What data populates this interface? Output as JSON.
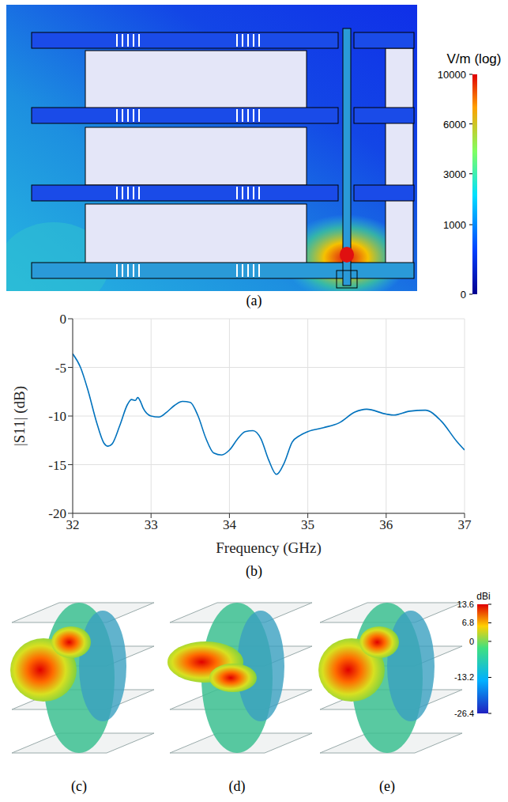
{
  "field_panel": {
    "label": "(a)",
    "colorbar": {
      "title": "V/m (log)",
      "range": [
        0,
        10000
      ],
      "ticks": [
        0,
        1000,
        3000,
        6000,
        10000
      ]
    }
  },
  "chart_data": {
    "label": "(b)",
    "type": "line",
    "x_label": "Frequency (GHz)",
    "y_label": "|S11| (dB)",
    "x": [
      32.0,
      32.1,
      32.2,
      32.3,
      32.4,
      32.45,
      32.5,
      32.6,
      32.7,
      32.75,
      32.8,
      32.83,
      32.87,
      32.9,
      33.0,
      33.1,
      33.2,
      33.3,
      33.4,
      33.5,
      33.6,
      33.7,
      33.8,
      33.9,
      34.0,
      34.1,
      34.2,
      34.3,
      34.4,
      34.5,
      34.6,
      34.7,
      34.8,
      34.9,
      35.0,
      35.2,
      35.4,
      35.6,
      35.75,
      36.0,
      36.1,
      36.3,
      36.5,
      36.7,
      36.9,
      37.0
    ],
    "values": [
      -3.6,
      -5.0,
      -7.5,
      -10.5,
      -12.8,
      -13.1,
      -12.9,
      -11.0,
      -8.8,
      -8.3,
      -8.4,
      -8.1,
      -8.6,
      -9.2,
      -10.0,
      -10.1,
      -9.6,
      -8.9,
      -8.5,
      -8.6,
      -10.0,
      -12.3,
      -13.8,
      -14.0,
      -13.5,
      -12.4,
      -11.6,
      -11.5,
      -12.3,
      -14.5,
      -16.0,
      -14.8,
      -12.7,
      -12.0,
      -11.6,
      -11.2,
      -10.7,
      -9.6,
      -9.3,
      -9.8,
      -9.9,
      -9.5,
      -9.4,
      -10.5,
      -12.6,
      -13.5
    ],
    "color": "#0072bd",
    "xlim": [
      32,
      37
    ],
    "xticks": [
      32,
      33,
      34,
      35,
      36,
      37
    ],
    "ylim": [
      -20,
      0
    ],
    "yticks": [
      -20,
      -15,
      -10,
      -5,
      0
    ],
    "grid": true
  },
  "pattern_panels": {
    "labels": [
      "(c)",
      "(d)",
      "(e)"
    ],
    "colorbar": {
      "title": "dBi",
      "range": [
        -26.4,
        13.6
      ],
      "ticks": [
        13.6,
        6.8,
        0,
        -13.2,
        -26.4
      ]
    }
  }
}
